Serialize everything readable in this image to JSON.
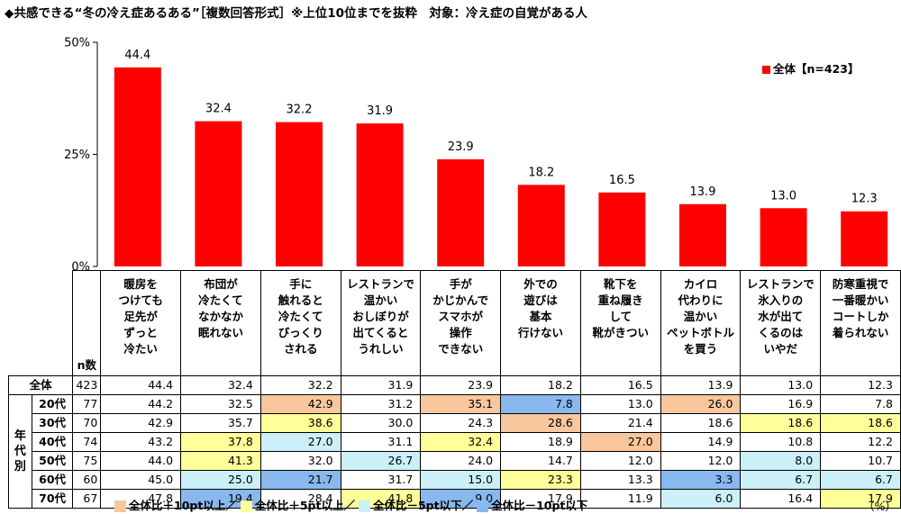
{
  "title": "◆共感できる“冬の冷え症あるある”［複数回答形式］※上位10位までを抜粋　対象：冷え症の自覚がある人",
  "legend": "全体【n=423】",
  "unit": "（%）",
  "colors": {
    "bar": "#ff0000",
    "plus10": "#f8c79d",
    "plus5": "#ffff99",
    "minus5": "#ccf0f8",
    "minus10": "#88b8ee"
  },
  "chart_data": {
    "type": "bar",
    "categories": [
      "暖房を\nつけても\n足先が\nずっと\n冷たい",
      "布団が\n冷たくて\nなかなか\n眠れない",
      "手に\n触れると\n冷たくて\nびっくり\nされる",
      "レストランで\n温かい\nおしぼりが\n出てくると\nうれしい",
      "手が\nかじかんで\nスマホが\n操作\nできない",
      "外での\n遊びは\n基本\n行けない",
      "靴下を\n重ね履き\nして\n靴がきつい",
      "カイロ\n代わりに\n温かい\nペットボトル\nを買う",
      "レストランで\n氷入りの\n水が出て\nくるのは\nいやだ",
      "防寒重視で\n一番暖かい\nコートしか\n着られない"
    ],
    "values": [
      44.4,
      32.4,
      32.2,
      31.9,
      23.9,
      18.2,
      16.5,
      13.9,
      13.0,
      12.3
    ],
    "yticks": [
      "0%",
      "25%",
      "50%"
    ],
    "ylim": [
      0,
      50
    ],
    "grid": false
  },
  "table": {
    "n_header": "n数",
    "group_label": "年\n代\n別",
    "rows": [
      {
        "label": "全体",
        "n": "423",
        "values": [
          "44.4",
          "32.4",
          "32.2",
          "31.9",
          "23.9",
          "18.2",
          "16.5",
          "13.9",
          "13.0",
          "12.3"
        ],
        "highlights": [
          "",
          "",
          "",
          "",
          "",
          "",
          "",
          "",
          "",
          ""
        ]
      },
      {
        "label": "20代",
        "n": "77",
        "values": [
          "44.2",
          "32.5",
          "42.9",
          "31.2",
          "35.1",
          "7.8",
          "13.0",
          "26.0",
          "16.9",
          "7.8"
        ],
        "highlights": [
          "",
          "",
          "plus10",
          "",
          "plus10",
          "minus10",
          "",
          "plus10",
          "",
          ""
        ]
      },
      {
        "label": "30代",
        "n": "70",
        "values": [
          "42.9",
          "35.7",
          "38.6",
          "30.0",
          "24.3",
          "28.6",
          "21.4",
          "18.6",
          "18.6",
          "18.6"
        ],
        "highlights": [
          "",
          "",
          "plus5",
          "",
          "",
          "plus10",
          "",
          "",
          "plus5",
          "plus5"
        ]
      },
      {
        "label": "40代",
        "n": "74",
        "values": [
          "43.2",
          "37.8",
          "27.0",
          "31.1",
          "32.4",
          "18.9",
          "27.0",
          "14.9",
          "10.8",
          "12.2"
        ],
        "highlights": [
          "",
          "plus5",
          "minus5",
          "",
          "plus5",
          "",
          "plus10",
          "",
          "",
          ""
        ]
      },
      {
        "label": "50代",
        "n": "75",
        "values": [
          "44.0",
          "41.3",
          "32.0",
          "26.7",
          "24.0",
          "14.7",
          "12.0",
          "12.0",
          "8.0",
          "10.7"
        ],
        "highlights": [
          "",
          "plus5",
          "",
          "minus5",
          "",
          "",
          "",
          "",
          "minus5",
          ""
        ]
      },
      {
        "label": "60代",
        "n": "60",
        "values": [
          "45.0",
          "25.0",
          "21.7",
          "31.7",
          "15.0",
          "23.3",
          "13.3",
          "3.3",
          "6.7",
          "6.7"
        ],
        "highlights": [
          "",
          "minus5",
          "minus10",
          "",
          "minus5",
          "plus5",
          "",
          "minus10",
          "minus5",
          "minus5"
        ]
      },
      {
        "label": "70代",
        "n": "67",
        "values": [
          "47.8",
          "19.4",
          "28.4",
          "41.8",
          "9.0",
          "17.9",
          "11.9",
          "6.0",
          "16.4",
          "17.9"
        ],
        "highlights": [
          "",
          "minus10",
          "",
          "plus5",
          "minus10",
          "",
          "",
          "minus5",
          "",
          "plus5"
        ]
      }
    ]
  },
  "footer_legend": [
    {
      "key": "plus10",
      "label": "全体比＋10pt以上／"
    },
    {
      "key": "plus5",
      "label": "全体比＋5pt以上／"
    },
    {
      "key": "minus5",
      "label": "全体比－5pt以下／"
    },
    {
      "key": "minus10",
      "label": "全体比－10pt以下"
    }
  ]
}
